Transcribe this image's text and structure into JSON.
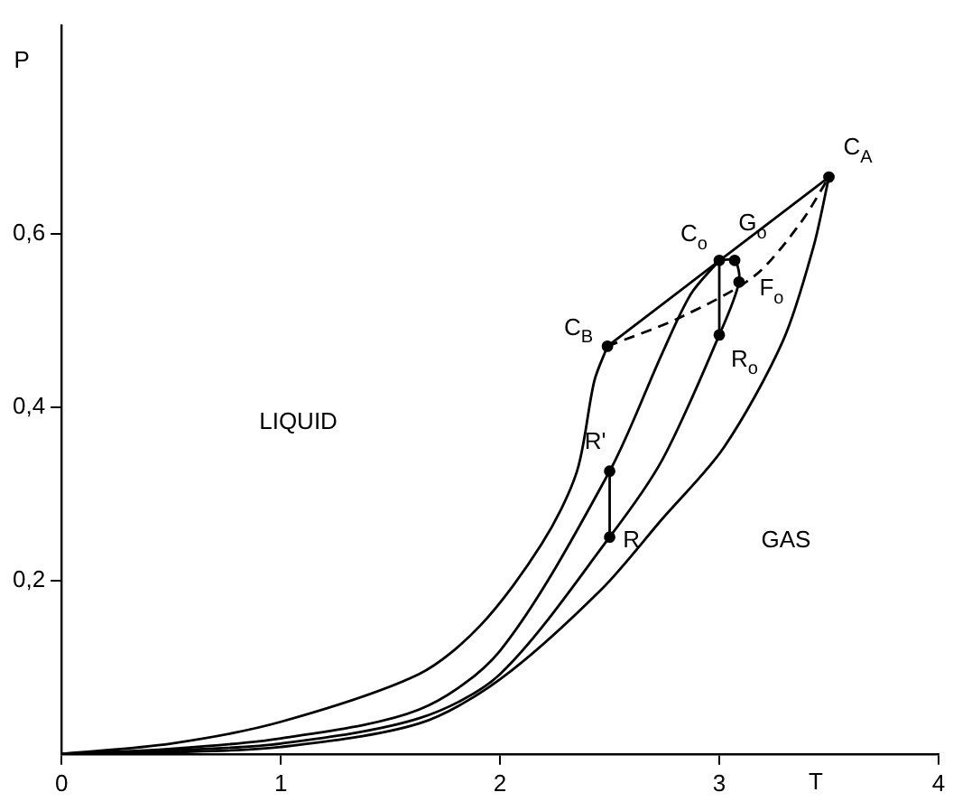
{
  "chart_data": {
    "type": "line",
    "xlabel": "T",
    "ylabel": "P",
    "xlim": [
      0,
      4
    ],
    "ylim": [
      0,
      0.84
    ],
    "xticks": [
      0,
      1,
      2,
      3,
      4
    ],
    "yticks": [
      {
        "value": 0.2,
        "label": "0,2"
      },
      {
        "value": 0.4,
        "label": "0,4"
      },
      {
        "value": 0.6,
        "label": "0,6"
      }
    ],
    "grid": false,
    "legend": false,
    "series": [
      {
        "color": "#000000",
        "marker": "none",
        "x": [
          0,
          0.5,
          1,
          1.63,
          1.91,
          2.19,
          2.35,
          2.43,
          2.49
        ],
        "values": [
          0,
          0.012,
          0.037,
          0.092,
          0.148,
          0.242,
          0.325,
          0.43,
          0.47
        ]
      },
      {
        "color": "#000000",
        "marker": "none",
        "x": [
          0,
          0.5,
          1,
          1.63,
          2,
          2.46,
          2.74,
          3.02,
          3.29,
          3.43,
          3.5
        ],
        "values": [
          0,
          0.002,
          0.008,
          0.035,
          0.086,
          0.189,
          0.271,
          0.353,
          0.476,
          0.585,
          0.665
        ]
      },
      {
        "color": "#000000",
        "marker": "none",
        "x": [
          0,
          0.5,
          1,
          1.63,
          2,
          2.5,
          2.74,
          2.87,
          3.0
        ],
        "values": [
          0,
          0.006,
          0.018,
          0.051,
          0.119,
          0.326,
          0.462,
          0.53,
          0.569
        ]
      },
      {
        "color": "#000000",
        "marker": "none",
        "x": [
          0,
          0.5,
          1,
          1.63,
          2,
          2.5,
          2.74,
          3.0,
          3.09,
          3.07,
          3.0
        ],
        "values": [
          0,
          0.004,
          0.012,
          0.041,
          0.092,
          0.25,
          0.339,
          0.483,
          0.544,
          0.569,
          0.569
        ]
      },
      {
        "color": "#000000",
        "marker": "none",
        "x": [
          2.49,
          3.5
        ],
        "values": [
          0.47,
          0.665
        ]
      },
      {
        "color": "#000000",
        "marker": "none",
        "line_style": "dashed",
        "x": [
          2.49,
          2.82,
          3.16,
          3.37,
          3.5
        ],
        "values": [
          0.47,
          0.503,
          0.551,
          0.612,
          0.665
        ]
      },
      {
        "color": "#000000",
        "marker": "none",
        "x": [
          2.5,
          2.5
        ],
        "values": [
          0.326,
          0.25
        ]
      },
      {
        "color": "#000000",
        "marker": "none",
        "x": [
          3.0,
          3.0
        ],
        "values": [
          0.569,
          0.483
        ]
      },
      {
        "type": "scatter",
        "color": "#000000",
        "marker": "circle",
        "x": [
          3.5,
          2.49,
          3.0,
          3.07,
          3.09,
          3.0,
          2.5,
          2.5
        ],
        "values": [
          0.665,
          0.47,
          0.569,
          0.569,
          0.544,
          0.483,
          0.326,
          0.25
        ]
      }
    ],
    "annotations": [
      {
        "text": "C$_{A}$",
        "x": 3.5,
        "y": 0.665
      },
      {
        "text": "C$_{B}$",
        "x": 2.49,
        "y": 0.47
      },
      {
        "text": "C$_{o}$",
        "x": 3.0,
        "y": 0.569
      },
      {
        "text": "G$_{o}$",
        "x": 3.07,
        "y": 0.569
      },
      {
        "text": "F$_{o}$",
        "x": 3.09,
        "y": 0.544
      },
      {
        "text": "R$_{o}$",
        "x": 3.0,
        "y": 0.483
      },
      {
        "text": "R'",
        "x": 2.5,
        "y": 0.326
      },
      {
        "text": "R",
        "x": 2.5,
        "y": 0.25
      },
      "LIQUID",
      "GAS"
    ]
  }
}
